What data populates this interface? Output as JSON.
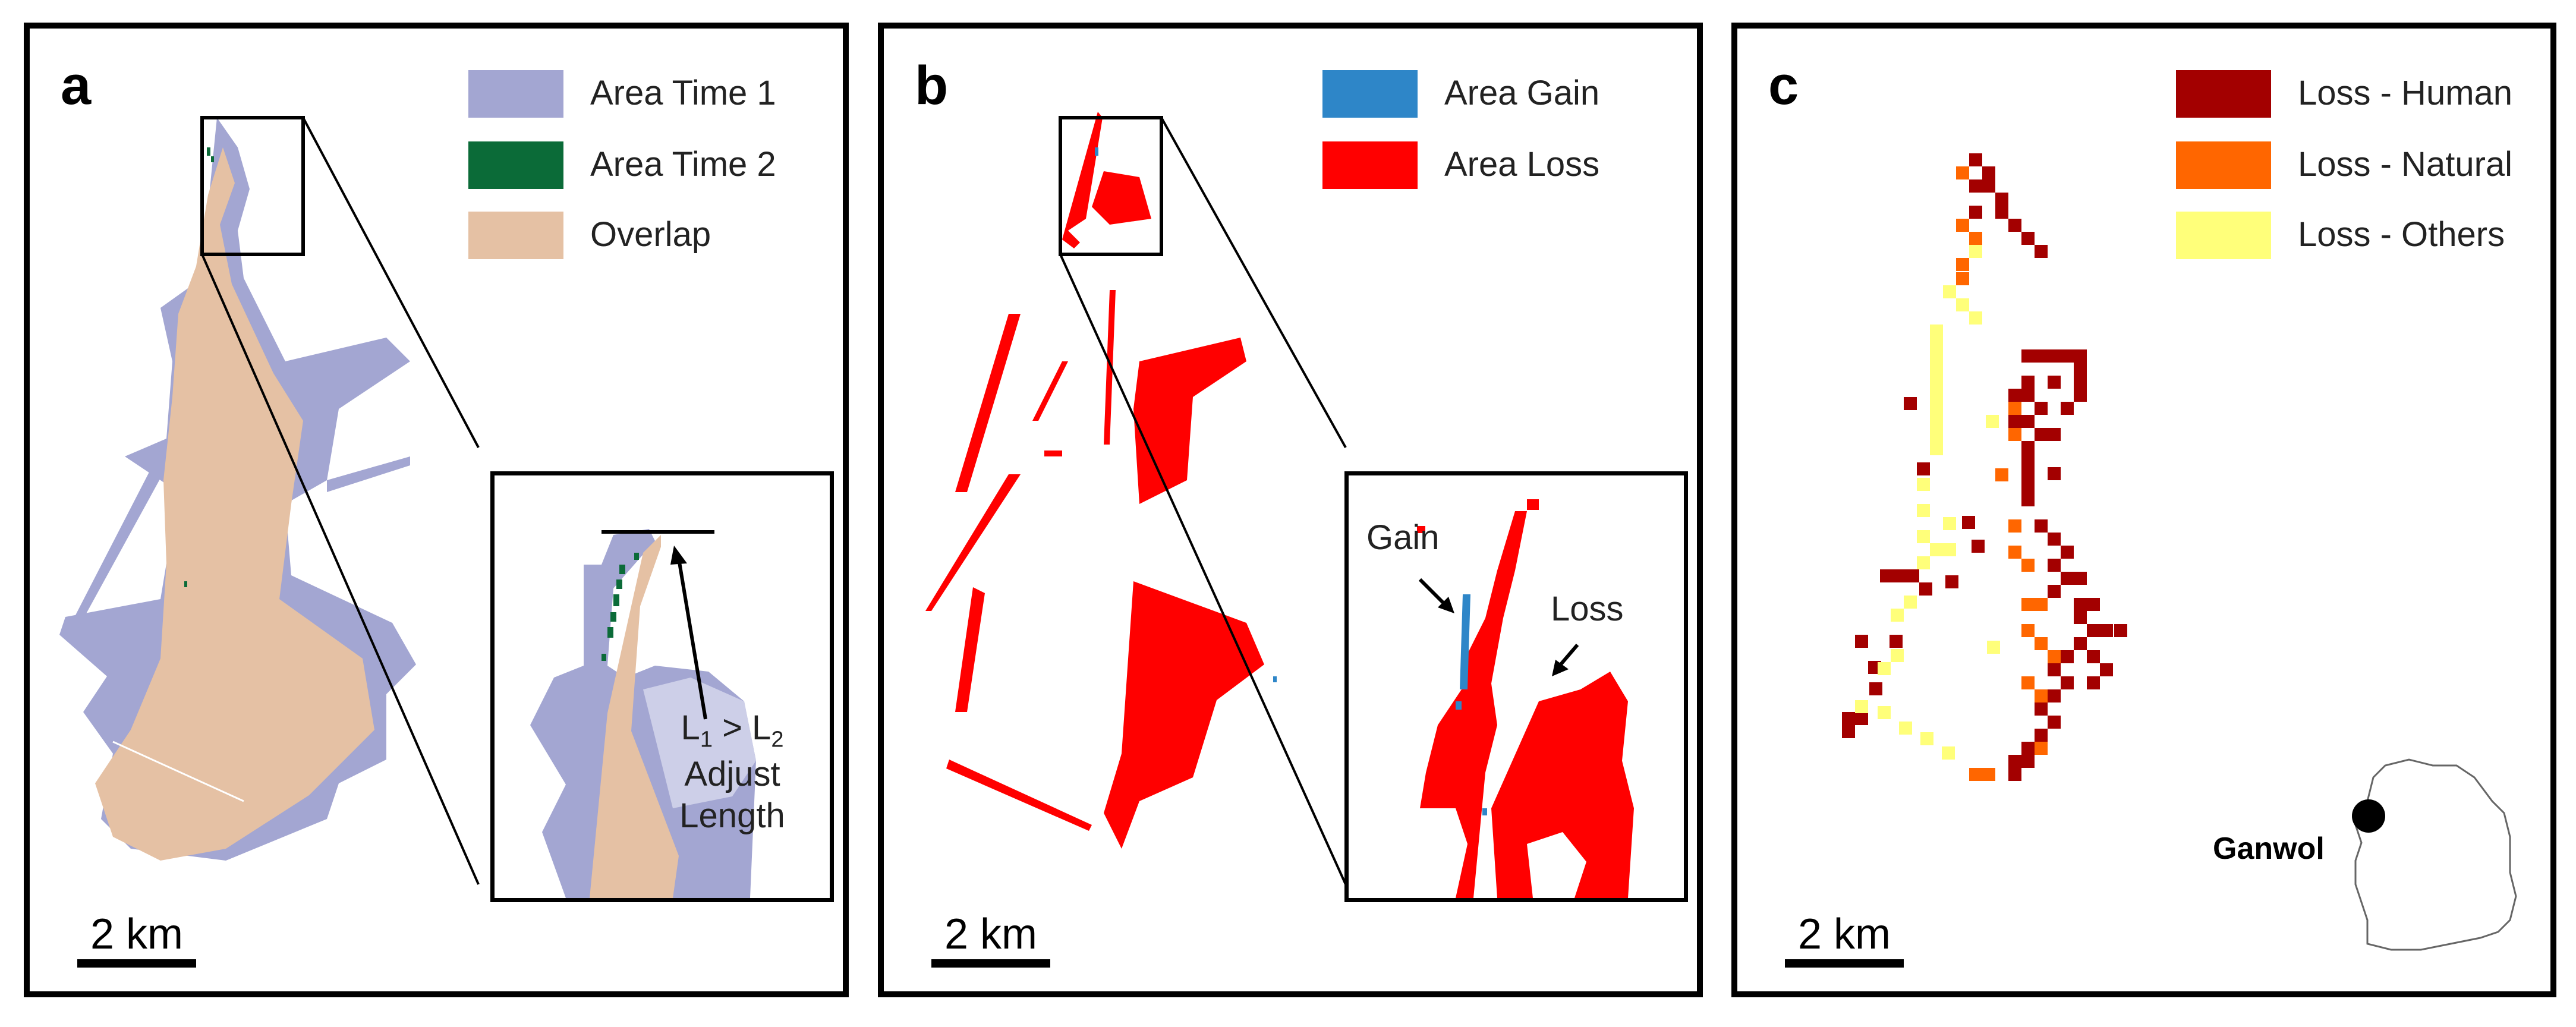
{
  "panels": {
    "a": {
      "letter": "a",
      "legend": [
        {
          "label": "Area Time 1",
          "color": "#a3a6d2"
        },
        {
          "label": "Area Time 2",
          "color": "#0b6b38"
        },
        {
          "label": "Overlap",
          "color": "#e5c1a4"
        }
      ],
      "scalebar": "2 km",
      "inset_annotation": {
        "line1": "L",
        "sub1": "1",
        "gt": " > L",
        "sub2": "2",
        "line2": "Adjust",
        "line3": "Length"
      }
    },
    "b": {
      "letter": "b",
      "legend": [
        {
          "label": "Area Gain",
          "color": "#2e86c8"
        },
        {
          "label": "Area Loss",
          "color": "#ff0000"
        }
      ],
      "scalebar": "2 km",
      "inset_labels": {
        "gain": "Gain",
        "loss": "Loss"
      }
    },
    "c": {
      "letter": "c",
      "legend": [
        {
          "label": "Loss - Human",
          "color": "#a30000"
        },
        {
          "label": "Loss - Natural",
          "color": "#ff6600"
        },
        {
          "label": "Loss - Others",
          "color": "#ffff7a"
        }
      ],
      "scalebar": "2 km",
      "location_label": "Ganwol"
    }
  }
}
